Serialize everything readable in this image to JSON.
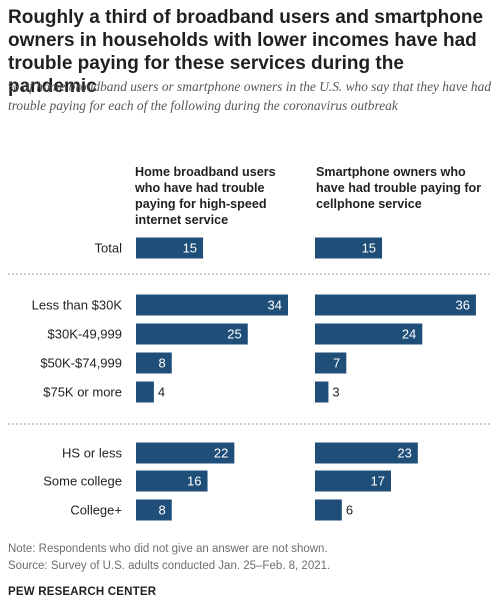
{
  "title": "Roughly a third of broadband users and smartphone owners in households with lower incomes have had trouble paying for these services during the pandemic",
  "subtitle": "% of home broadband users or smartphone owners in the U.S. who say that they have had trouble paying for each of the following during the coronavirus outbreak",
  "note": "Note: Respondents who did not give an answer are not shown.",
  "source": "Source: Survey of U.S. adults conducted Jan. 25–Feb. 8, 2021.",
  "brand": "PEW RESEARCH CENTER",
  "colors": {
    "bar": "#1f4e79",
    "bar_label_inside": "#ffffff",
    "bar_label_outside": "#231f20",
    "divider": "#9c9c9c"
  },
  "chart_data": {
    "type": "bar",
    "orientation": "horizontal",
    "categories": [
      "Total",
      "Less than $30K",
      "$30K-49,999",
      "$50K-$74,999",
      "$75K or more",
      "HS or less",
      "Some college",
      "College+"
    ],
    "groups": [
      [
        "Total"
      ],
      [
        "Less than $30K",
        "$30K-49,999",
        "$50K-$74,999",
        "$75K or more"
      ],
      [
        "HS or less",
        "Some college",
        "College+"
      ]
    ],
    "series": [
      {
        "name": "Home broadband users who have had trouble paying for high-speed internet service",
        "values": [
          15,
          34,
          25,
          8,
          4,
          22,
          16,
          8
        ]
      },
      {
        "name": "Smartphone owners who have had trouble paying for cellphone service",
        "values": [
          15,
          36,
          24,
          7,
          3,
          23,
          17,
          6
        ]
      }
    ],
    "title": "Roughly a third of broadband users and smartphone owners in households with lower incomes have had trouble paying for these services during the pandemic",
    "xlabel": "",
    "ylabel": "",
    "grid": false
  }
}
